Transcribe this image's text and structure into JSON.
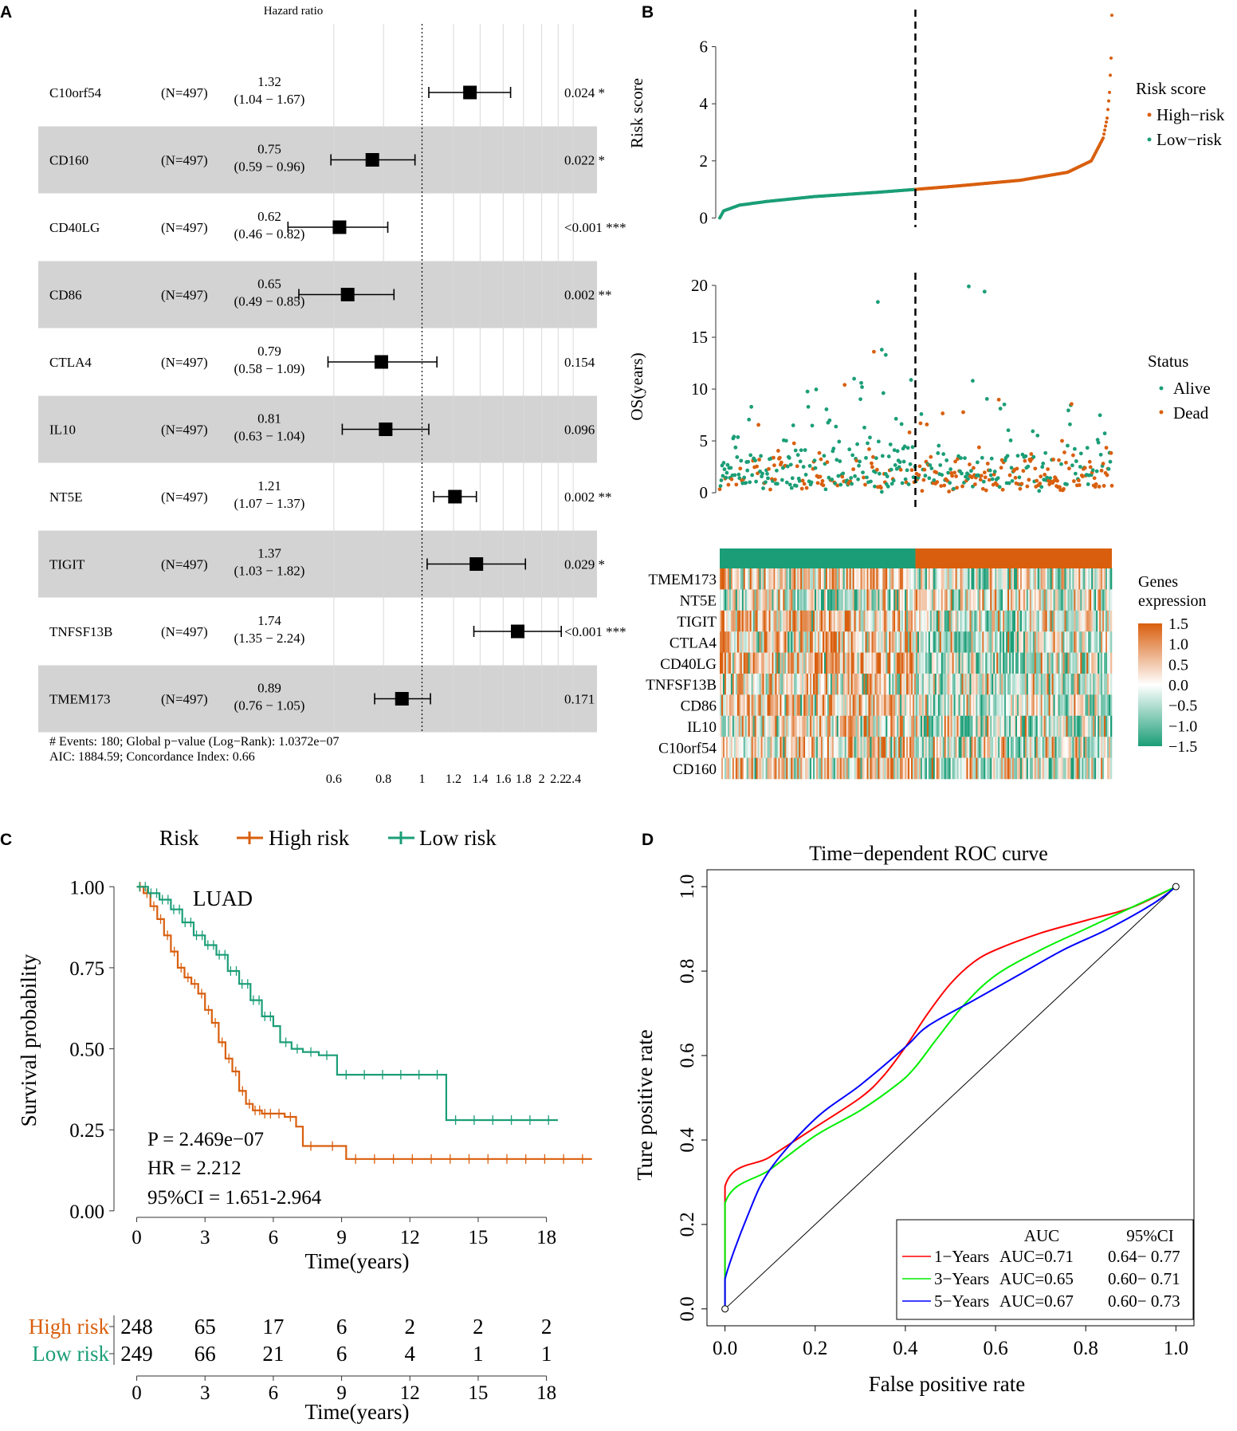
{
  "panel_labels": [
    "A",
    "B",
    "C",
    "D"
  ],
  "colors": {
    "high": "#D95F0E",
    "low": "#1B9E77",
    "band": "#D3D3D3",
    "red": "#FF0000",
    "green": "#00EE00",
    "blue": "#0000FF"
  },
  "chart_data": [
    {
      "panel": "A",
      "type": "forest",
      "title": "Hazard ratio",
      "axis_scale": "log",
      "xlim": [
        0.55,
        2.5
      ],
      "ticks": [
        {
          "v": 0.6,
          "label": "0.6"
        },
        {
          "v": 0.8,
          "label": "0.8"
        },
        {
          "v": 1,
          "label": "1"
        },
        {
          "v": 1.2,
          "label": "1.2"
        },
        {
          "v": 1.4,
          "label": "1.4"
        },
        {
          "v": 1.6,
          "label": "1.6"
        },
        {
          "v": 1.8,
          "label": "1.8"
        },
        {
          "v": 2,
          "label": "2"
        },
        {
          "v": 2.2,
          "label": "2.2"
        },
        {
          "v": 2.4,
          "label": "2.4"
        }
      ],
      "rows": [
        {
          "gene": "C10orf54",
          "n": "(N=497)",
          "hr": 1.32,
          "lo": 1.04,
          "hi": 1.67,
          "hr_text": "1.32",
          "ci_text": "(1.04 − 1.67)",
          "p_text": "0.024 *"
        },
        {
          "gene": "CD160",
          "n": "(N=497)",
          "hr": 0.75,
          "lo": 0.59,
          "hi": 0.96,
          "hr_text": "0.75",
          "ci_text": "(0.59 − 0.96)",
          "p_text": "0.022 *"
        },
        {
          "gene": "CD40LG",
          "n": "(N=497)",
          "hr": 0.62,
          "lo": 0.46,
          "hi": 0.82,
          "hr_text": "0.62",
          "ci_text": "(0.46 − 0.82)",
          "p_text": "<0.001 ***"
        },
        {
          "gene": "CD86",
          "n": "(N=497)",
          "hr": 0.65,
          "lo": 0.49,
          "hi": 0.85,
          "hr_text": "0.65",
          "ci_text": "(0.49 − 0.85)",
          "p_text": "0.002 **"
        },
        {
          "gene": "CTLA4",
          "n": "(N=497)",
          "hr": 0.79,
          "lo": 0.58,
          "hi": 1.09,
          "hr_text": "0.79",
          "ci_text": "(0.58 − 1.09)",
          "p_text": "0.154"
        },
        {
          "gene": "IL10",
          "n": "(N=497)",
          "hr": 0.81,
          "lo": 0.63,
          "hi": 1.04,
          "hr_text": "0.81",
          "ci_text": "(0.63 − 1.04)",
          "p_text": "0.096"
        },
        {
          "gene": "NT5E",
          "n": "(N=497)",
          "hr": 1.21,
          "lo": 1.07,
          "hi": 1.37,
          "hr_text": "1.21",
          "ci_text": "(1.07 − 1.37)",
          "p_text": "0.002 **"
        },
        {
          "gene": "TIGIT",
          "n": "(N=497)",
          "hr": 1.37,
          "lo": 1.03,
          "hi": 1.82,
          "hr_text": "1.37",
          "ci_text": "(1.03 − 1.82)",
          "p_text": "0.029 *"
        },
        {
          "gene": "TNFSF13B",
          "n": "(N=497)",
          "hr": 1.74,
          "lo": 1.35,
          "hi": 2.24,
          "hr_text": "1.74",
          "ci_text": "(1.35 − 2.24)",
          "p_text": "<0.001 ***"
        },
        {
          "gene": "TMEM173",
          "n": "(N=497)",
          "hr": 0.89,
          "lo": 0.76,
          "hi": 1.05,
          "hr_text": "0.89",
          "ci_text": "(0.76 − 1.05)",
          "p_text": "0.171"
        }
      ],
      "footer": [
        "# Events: 180; Global p−value (Log−Rank): 1.0372e−07",
        "AIC: 1884.59; Concordance Index: 0.66"
      ]
    },
    {
      "panel": "B-top",
      "type": "scatter",
      "n_samples": 497,
      "cutoff_index": 248,
      "ylabel": "Risk score",
      "yticks": [
        {
          "v": 0,
          "label": "0"
        },
        {
          "v": 2,
          "label": "2"
        },
        {
          "v": 4,
          "label": "4"
        },
        {
          "v": 6,
          "label": "6"
        }
      ],
      "ylim": [
        -0.1,
        7.3
      ],
      "legend_title": "Risk score",
      "legend": [
        "High−risk",
        "Low−risk"
      ],
      "curve_knots": [
        [
          0,
          0.0
        ],
        [
          5,
          0.25
        ],
        [
          25,
          0.45
        ],
        [
          60,
          0.58
        ],
        [
          120,
          0.75
        ],
        [
          200,
          0.9
        ],
        [
          247,
          1.0
        ],
        [
          300,
          1.12
        ],
        [
          380,
          1.32
        ],
        [
          440,
          1.6
        ],
        [
          470,
          2.0
        ],
        [
          485,
          2.8
        ],
        [
          490,
          3.5
        ],
        [
          493,
          4.4
        ],
        [
          495,
          5.6
        ],
        [
          496,
          7.1
        ]
      ]
    },
    {
      "panel": "B-mid",
      "type": "scatter",
      "ylabel": "OS(years)",
      "yticks": [
        {
          "v": 0,
          "label": "0"
        },
        {
          "v": 5,
          "label": "5"
        },
        {
          "v": 10,
          "label": "10"
        },
        {
          "v": 15,
          "label": "15"
        },
        {
          "v": 20,
          "label": "20"
        }
      ],
      "ylim": [
        -0.3,
        21
      ],
      "legend_title": "Status",
      "legend": [
        "Alive",
        "Dead"
      ],
      "notable_points": [
        [
          200,
          18.4,
          "Alive"
        ],
        [
          205,
          13.8,
          "Alive"
        ],
        [
          210,
          13.3,
          "Alive"
        ],
        [
          195,
          13.6,
          "Dead"
        ],
        [
          315,
          19.9,
          "Alive"
        ],
        [
          335,
          19.4,
          "Alive"
        ],
        [
          320,
          10.8,
          "Alive"
        ]
      ]
    },
    {
      "panel": "B-heat",
      "type": "heatmap",
      "genes": [
        "TMEM173",
        "NT5E",
        "TIGIT",
        "CTLA4",
        "CD40LG",
        "TNFSF13B",
        "CD86",
        "IL10",
        "C10orf54",
        "CD160"
      ],
      "low_bias": [
        0.55,
        -0.25,
        0.45,
        0.45,
        0.6,
        0.35,
        0.35,
        0.35,
        0.25,
        0.4
      ],
      "legend_title": [
        "Genes",
        "expression"
      ],
      "scale": [
        {
          "v": 1.5,
          "label": "1.5"
        },
        {
          "v": 1.0,
          "label": "1.0"
        },
        {
          "v": 0.5,
          "label": "0.5"
        },
        {
          "v": 0,
          "label": "0.0"
        },
        {
          "v": -0.5,
          "label": "−0.5"
        },
        {
          "v": -1.0,
          "label": "−1.0"
        },
        {
          "v": -1.5,
          "label": "−1.5"
        }
      ]
    },
    {
      "panel": "C",
      "type": "line",
      "legend_title": "Risk",
      "series_names": [
        "High risk",
        "Low risk"
      ],
      "annotation": "LUAD",
      "xlabel": "Time(years)",
      "ylabel": "Survival probability",
      "xlim": [
        -1,
        20.5
      ],
      "ylim": [
        -0.02,
        1.04
      ],
      "xticks": [
        0,
        3,
        6,
        9,
        12,
        15,
        18
      ],
      "yticks": [
        {
          "v": 0,
          "label": "0.00"
        },
        {
          "v": 0.25,
          "label": "0.25"
        },
        {
          "v": 0.5,
          "label": "0.50"
        },
        {
          "v": 0.75,
          "label": "0.75"
        },
        {
          "v": 1,
          "label": "1.00"
        }
      ],
      "stats": [
        "P = 2.469e−07",
        "HR = 2.212",
        "95%CI = 1.651-2.964"
      ],
      "series": [
        {
          "name": "High risk",
          "points": [
            [
              0,
              1.0
            ],
            [
              0.3,
              0.98
            ],
            [
              0.6,
              0.94
            ],
            [
              0.9,
              0.9
            ],
            [
              1.2,
              0.85
            ],
            [
              1.5,
              0.8
            ],
            [
              1.8,
              0.75
            ],
            [
              2.1,
              0.72
            ],
            [
              2.4,
              0.7
            ],
            [
              2.7,
              0.67
            ],
            [
              3.0,
              0.62
            ],
            [
              3.3,
              0.58
            ],
            [
              3.6,
              0.52
            ],
            [
              3.9,
              0.47
            ],
            [
              4.2,
              0.43
            ],
            [
              4.5,
              0.37
            ],
            [
              4.8,
              0.33
            ],
            [
              5.1,
              0.31
            ],
            [
              5.5,
              0.3
            ],
            [
              6.0,
              0.3
            ],
            [
              6.5,
              0.29
            ],
            [
              7.0,
              0.26
            ],
            [
              7.3,
              0.2
            ],
            [
              8.0,
              0.2
            ],
            [
              9.2,
              0.19
            ],
            [
              9.2,
              0.16
            ],
            [
              20,
              0.16
            ]
          ]
        },
        {
          "name": "Low risk",
          "points": [
            [
              0,
              1.0
            ],
            [
              0.5,
              0.98
            ],
            [
              1.0,
              0.96
            ],
            [
              1.5,
              0.93
            ],
            [
              2.0,
              0.89
            ],
            [
              2.5,
              0.85
            ],
            [
              3.0,
              0.82
            ],
            [
              3.5,
              0.79
            ],
            [
              4.0,
              0.74
            ],
            [
              4.5,
              0.7
            ],
            [
              5.0,
              0.65
            ],
            [
              5.5,
              0.6
            ],
            [
              6.0,
              0.57
            ],
            [
              6.3,
              0.52
            ],
            [
              6.8,
              0.5
            ],
            [
              7.3,
              0.49
            ],
            [
              8.0,
              0.48
            ],
            [
              8.7,
              0.48
            ],
            [
              8.8,
              0.42
            ],
            [
              13.6,
              0.42
            ],
            [
              13.6,
              0.28
            ],
            [
              18.5,
              0.28
            ]
          ]
        }
      ],
      "risk_table": {
        "rows": [
          {
            "name": "High risk",
            "counts": [
              248,
              65,
              17,
              6,
              2,
              2,
              2
            ]
          },
          {
            "name": "Low risk",
            "counts": [
              249,
              66,
              21,
              6,
              4,
              1,
              1
            ]
          }
        ],
        "xlabel": "Time(years)",
        "times": [
          0,
          3,
          6,
          9,
          12,
          15,
          18
        ]
      }
    },
    {
      "panel": "D",
      "type": "line",
      "title": "Time−dependent ROC curve",
      "xlabel": "False positive rate",
      "ylabel": "Ture positive rate",
      "xlim": [
        -0.04,
        1.04
      ],
      "ylim": [
        -0.04,
        1.04
      ],
      "ticks": [
        {
          "v": 0,
          "label": "0.0"
        },
        {
          "v": 0.2,
          "label": "0.2"
        },
        {
          "v": 0.4,
          "label": "0.4"
        },
        {
          "v": 0.6,
          "label": "0.6"
        },
        {
          "v": 0.8,
          "label": "0.8"
        },
        {
          "v": 1,
          "label": "1.0"
        }
      ],
      "legend_header": [
        "AUC",
        "95%CI"
      ],
      "series": [
        {
          "name": "1−Years",
          "auc": "AUC=0.71",
          "ci": "0.64− 0.77",
          "color": "#FF0000",
          "points": [
            [
              0,
              0
            ],
            [
              0,
              0.29
            ],
            [
              0.1,
              0.36
            ],
            [
              0.2,
              0.43
            ],
            [
              0.3,
              0.5
            ],
            [
              0.35,
              0.55
            ],
            [
              0.4,
              0.62
            ],
            [
              0.45,
              0.7
            ],
            [
              0.5,
              0.77
            ],
            [
              0.55,
              0.82
            ],
            [
              0.6,
              0.85
            ],
            [
              0.7,
              0.89
            ],
            [
              0.8,
              0.92
            ],
            [
              0.9,
              0.95
            ],
            [
              1,
              1
            ]
          ]
        },
        {
          "name": "3−Years",
          "auc": "AUC=0.65",
          "ci": "0.60− 0.71",
          "color": "#00EE00",
          "points": [
            [
              0,
              0
            ],
            [
              0,
              0.25
            ],
            [
              0.1,
              0.33
            ],
            [
              0.2,
              0.41
            ],
            [
              0.3,
              0.47
            ],
            [
              0.38,
              0.53
            ],
            [
              0.42,
              0.57
            ],
            [
              0.47,
              0.64
            ],
            [
              0.53,
              0.72
            ],
            [
              0.6,
              0.79
            ],
            [
              0.7,
              0.85
            ],
            [
              0.8,
              0.9
            ],
            [
              0.9,
              0.95
            ],
            [
              1,
              1
            ]
          ]
        },
        {
          "name": "5−Years",
          "auc": "AUC=0.67",
          "ci": "0.60− 0.73",
          "color": "#0000FF",
          "points": [
            [
              0,
              0
            ],
            [
              0,
              0.07
            ],
            [
              0.05,
              0.22
            ],
            [
              0.1,
              0.33
            ],
            [
              0.2,
              0.45
            ],
            [
              0.3,
              0.53
            ],
            [
              0.4,
              0.62
            ],
            [
              0.45,
              0.67
            ],
            [
              0.55,
              0.73
            ],
            [
              0.65,
              0.79
            ],
            [
              0.75,
              0.85
            ],
            [
              0.85,
              0.9
            ],
            [
              0.95,
              0.96
            ],
            [
              1,
              1
            ]
          ]
        }
      ]
    }
  ]
}
